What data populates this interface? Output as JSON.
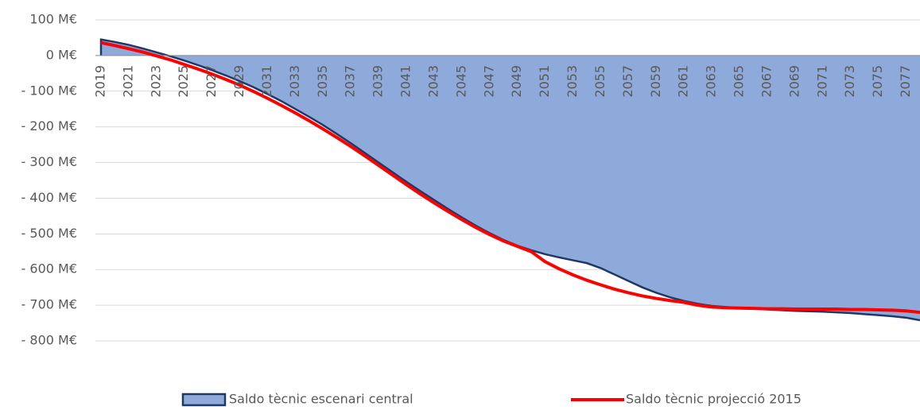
{
  "chart_data": {
    "type": "area_line",
    "categories": [
      2019,
      null,
      2021,
      null,
      2023,
      null,
      2025,
      null,
      2027,
      null,
      2029,
      null,
      2031,
      null,
      2033,
      null,
      2035,
      null,
      2037,
      null,
      2039,
      null,
      2041,
      null,
      2043,
      null,
      2045,
      null,
      2047,
      null,
      2049,
      null,
      2051,
      null,
      2053,
      null,
      2055,
      null,
      2057,
      null,
      2059,
      null,
      2061,
      null,
      2063,
      null,
      2065,
      null,
      2067,
      null,
      2069,
      null,
      2071,
      null,
      2073,
      null,
      2075,
      null,
      2077,
      null
    ],
    "series": [
      {
        "name": "Saldo tècnic escenari central",
        "kind": "area",
        "color": "#8eaadb",
        "edge": "#1f3864",
        "values": [
          45,
          38,
          30,
          20,
          9,
          -2,
          -14,
          -27,
          -41,
          -56,
          -72,
          -89,
          -108,
          -128,
          -150,
          -172,
          -195,
          -220,
          -246,
          -273,
          -300,
          -327,
          -354,
          -380,
          -405,
          -430,
          -454,
          -477,
          -498,
          -517,
          -533,
          -546,
          -557,
          -566,
          -574,
          -582,
          -596,
          -614,
          -632,
          -650,
          -665,
          -678,
          -688,
          -696,
          -702,
          -705,
          -708,
          -710,
          -712,
          -714,
          -716,
          -717,
          -718,
          -720,
          -722,
          -725,
          -728,
          -731,
          -735,
          -742
        ]
      },
      {
        "name": "Saldo tècnic projecció 2015",
        "kind": "line",
        "color": "#ff0000",
        "values": [
          36,
          28,
          19,
          10,
          -1,
          -12,
          -25,
          -38,
          -52,
          -67,
          -83,
          -101,
          -120,
          -140,
          -161,
          -183,
          -206,
          -230,
          -255,
          -281,
          -308,
          -335,
          -362,
          -388,
          -413,
          -437,
          -460,
          -482,
          -502,
          -520,
          -535,
          -550,
          -578,
          -598,
          -615,
          -630,
          -643,
          -655,
          -665,
          -674,
          -681,
          -687,
          -692,
          -700,
          -705,
          -707,
          -708,
          -709,
          -710,
          -710,
          -711,
          -711,
          -711,
          -711,
          -712,
          -712,
          -713,
          -714,
          -716,
          -720
        ]
      }
    ],
    "ylim": [
      -800,
      100
    ],
    "yticks": [
      {
        "value": 100,
        "label": "100 M€"
      },
      {
        "value": 0,
        "label": "0 M€"
      },
      {
        "value": -100,
        "label": "- 100 M€"
      },
      {
        "value": -200,
        "label": "- 200 M€"
      },
      {
        "value": -300,
        "label": "- 300 M€"
      },
      {
        "value": -400,
        "label": "- 400 M€"
      },
      {
        "value": -500,
        "label": "- 500 M€"
      },
      {
        "value": -600,
        "label": "- 600 M€"
      },
      {
        "value": -700,
        "label": "- 700 M€"
      },
      {
        "value": -800,
        "label": "- 800 M€"
      }
    ],
    "grid": true,
    "legend": "bottom"
  }
}
